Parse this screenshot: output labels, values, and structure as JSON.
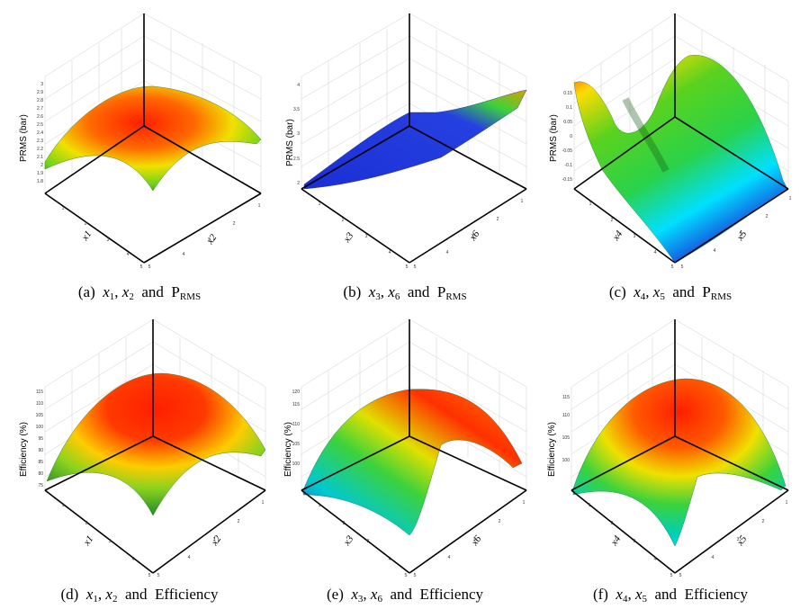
{
  "figure": {
    "panels": [
      {
        "id": "a",
        "caption": {
          "label": "(a)",
          "v1": "x",
          "s1": "1",
          "sep": ",",
          "v2": "x",
          "s2": "2",
          "and": "and",
          "resp": "P",
          "resp_sub": "RMS"
        },
        "chart_data": {
          "type": "surface3d",
          "xlabel": "x1",
          "ylabel": "x2",
          "zlabel": "PRMS (bar)",
          "x_ticks": [
            "1",
            "2",
            "3",
            "4",
            "5"
          ],
          "y_ticks": [
            "1",
            "2",
            "3",
            "4",
            "5"
          ],
          "z_ticks": [
            "1.8",
            "1.9",
            "2",
            "2.1",
            "2.2",
            "2.3",
            "2.4",
            "2.5",
            "2.6",
            "2.7",
            "2.8",
            "2.9",
            "3"
          ],
          "colormap": [
            "#1a2fd6",
            "#00e8ff",
            "#3cd23c",
            "#ffff00",
            "#ff2000"
          ]
        }
      },
      {
        "id": "b",
        "caption": {
          "label": "(b)",
          "v1": "x",
          "s1": "3",
          "sep": ",",
          "v2": "x",
          "s2": "6",
          "and": "and",
          "resp": "P",
          "resp_sub": "RMS"
        },
        "chart_data": {
          "type": "surface3d",
          "xlabel": "x3",
          "ylabel": "x6",
          "zlabel": "PRMS (bar)",
          "x_ticks": [
            "1",
            "2",
            "3",
            "4",
            "5"
          ],
          "y_ticks": [
            "1",
            "2",
            "3",
            "4",
            "5"
          ],
          "z_ticks": [
            "2",
            "2.5",
            "3",
            "3.5",
            "4"
          ],
          "colormap": [
            "#1a2fd6",
            "#00e8ff",
            "#3cd23c",
            "#ffff00",
            "#ff2000"
          ]
        }
      },
      {
        "id": "c",
        "caption": {
          "label": "(c)",
          "v1": "x",
          "s1": "4",
          "sep": ",",
          "v2": "x",
          "s2": "5",
          "and": "and",
          "resp": "P",
          "resp_sub": "RMS"
        },
        "chart_data": {
          "type": "surface3d",
          "xlabel": "x4",
          "ylabel": "x5",
          "zlabel": "PRMS (bar)",
          "x_ticks": [
            "1",
            "2",
            "3",
            "4",
            "5"
          ],
          "y_ticks": [
            "1",
            "2",
            "3",
            "4",
            "5"
          ],
          "z_ticks": [
            "0.15",
            "0.1",
            "0.05",
            "0",
            "-0.05",
            "-0.1",
            "-0.15"
          ],
          "colormap": [
            "#1a2fd6",
            "#00e8ff",
            "#3cd23c",
            "#ffff00",
            "#ff2000"
          ]
        }
      },
      {
        "id": "d",
        "caption": {
          "label": "(d)",
          "v1": "x",
          "s1": "1",
          "sep": ",",
          "v2": "x",
          "s2": "2",
          "and": "and",
          "resp": "Efficiency",
          "resp_sub": ""
        },
        "chart_data": {
          "type": "surface3d",
          "xlabel": "x1",
          "ylabel": "x2",
          "zlabel": "Efficiency (%)",
          "x_ticks": [
            "1",
            "2",
            "3",
            "4",
            "5"
          ],
          "y_ticks": [
            "1",
            "2",
            "3",
            "4",
            "5"
          ],
          "z_ticks": [
            "75",
            "80",
            "85",
            "90",
            "95",
            "100",
            "105",
            "110",
            "115"
          ],
          "colormap": [
            "#1a2fd6",
            "#00e8ff",
            "#3cd23c",
            "#ffff00",
            "#ff2000"
          ]
        }
      },
      {
        "id": "e",
        "caption": {
          "label": "(e)",
          "v1": "x",
          "s1": "3",
          "sep": ",",
          "v2": "x",
          "s2": "6",
          "and": "and",
          "resp": "Efficiency",
          "resp_sub": ""
        },
        "chart_data": {
          "type": "surface3d",
          "xlabel": "x3",
          "ylabel": "x6",
          "zlabel": "Efficiency (%)",
          "x_ticks": [
            "1",
            "2",
            "3",
            "4",
            "5"
          ],
          "y_ticks": [
            "1",
            "2",
            "3",
            "4",
            "5"
          ],
          "z_ticks": [
            "100",
            "105",
            "110",
            "115",
            "120"
          ],
          "colormap": [
            "#1a2fd6",
            "#00e8ff",
            "#3cd23c",
            "#ffff00",
            "#ff2000"
          ]
        }
      },
      {
        "id": "f",
        "caption": {
          "label": "(f)",
          "v1": "x",
          "s1": "4",
          "sep": ",",
          "v2": "x",
          "s2": "5",
          "and": "and",
          "resp": "Efficiency",
          "resp_sub": ""
        },
        "chart_data": {
          "type": "surface3d",
          "xlabel": "x4",
          "ylabel": "x5",
          "zlabel": "Efficiency (%)",
          "x_ticks": [
            "1",
            "2",
            "3",
            "4",
            "5"
          ],
          "y_ticks": [
            "1",
            "2",
            "3",
            "4",
            "5"
          ],
          "z_ticks": [
            "100",
            "105",
            "110",
            "115"
          ],
          "colormap": [
            "#1a2fd6",
            "#00e8ff",
            "#3cd23c",
            "#ffff00",
            "#ff2000"
          ]
        }
      }
    ]
  }
}
